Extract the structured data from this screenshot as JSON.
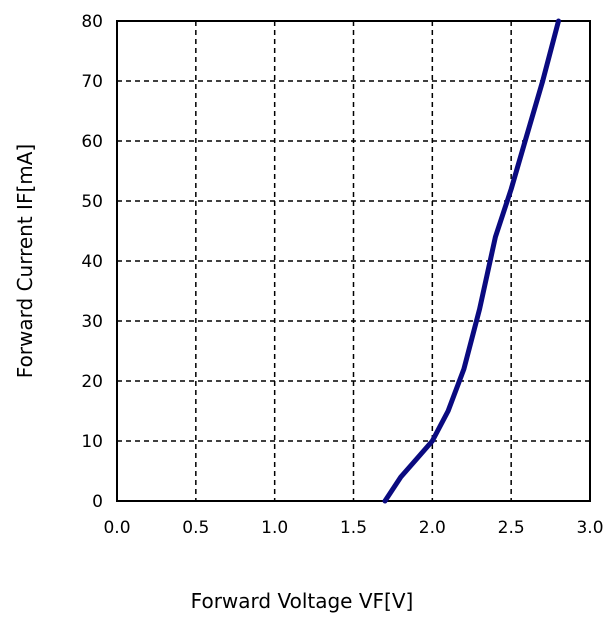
{
  "chart_data": {
    "type": "line",
    "xlabel": "Forward Voltage VF[V]",
    "ylabel": "Forward Current IF[mA]",
    "xlim": [
      0,
      3
    ],
    "ylim": [
      0,
      80
    ],
    "x_ticks": [
      "0.0",
      "0.5",
      "1.0",
      "1.5",
      "2.0",
      "2.5",
      "3.0"
    ],
    "y_ticks": [
      "0",
      "10",
      "20",
      "30",
      "40",
      "50",
      "60",
      "70",
      "80"
    ],
    "grid": "dashed",
    "series": [
      {
        "color": "#0a0a80",
        "x": [
          1.7,
          1.8,
          1.9,
          2.0,
          2.1,
          2.2,
          2.3,
          2.35,
          2.4,
          2.45,
          2.5,
          2.6,
          2.7,
          2.8
        ],
        "y": [
          0,
          4,
          7,
          10,
          15,
          22,
          32,
          38,
          44,
          48,
          52,
          61,
          70,
          80
        ]
      }
    ]
  }
}
